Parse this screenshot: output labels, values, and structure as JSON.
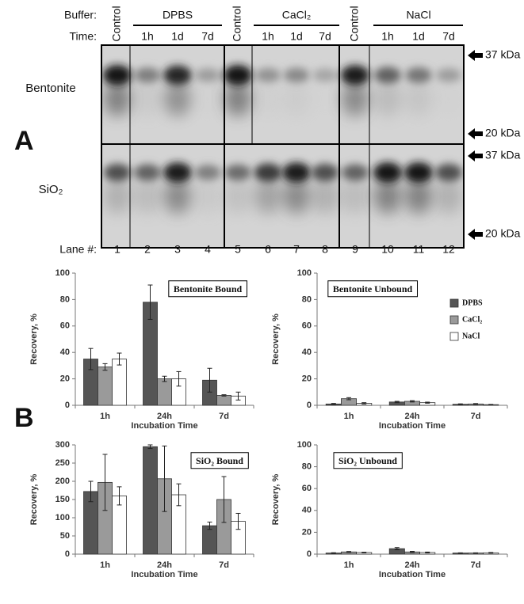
{
  "panel_a": {
    "label": "A",
    "buffer_label": "Buffer:",
    "time_label": "Time:",
    "lane_label": "Lane #:",
    "controls": [
      "Control",
      "Control",
      "Control"
    ],
    "groups": [
      {
        "name": "DPBS",
        "times": [
          "1h",
          "1d",
          "7d"
        ]
      },
      {
        "name": "CaCl₂",
        "times": [
          "1h",
          "1d",
          "7d"
        ]
      },
      {
        "name": "NaCl",
        "times": [
          "1h",
          "1d",
          "7d"
        ]
      }
    ],
    "lanes": [
      1,
      2,
      3,
      4,
      5,
      6,
      7,
      8,
      9,
      10,
      11,
      12
    ],
    "rows": [
      "Bentonite",
      "SiO₂"
    ],
    "markers": [
      "37 kDa",
      "20 kDa",
      "37 kDa",
      "20 kDa"
    ]
  },
  "panel_b": {
    "label": "B"
  },
  "chart_data": [
    {
      "type": "bar",
      "title": "Bentonite Bound",
      "x_label": "Incubation Time",
      "y_label": "Recovery, %",
      "categories": [
        "1h",
        "24h",
        "7d"
      ],
      "ylim": [
        0,
        100
      ],
      "yticks": [
        0,
        20,
        40,
        60,
        80,
        100
      ],
      "series": [
        {
          "color": "#555555",
          "values": [
            35,
            78,
            19
          ],
          "errors": [
            8,
            13,
            9
          ]
        },
        {
          "color": "#9a9a9a",
          "values": [
            29,
            20,
            7.5
          ],
          "errors": [
            2.5,
            2,
            0.5
          ]
        },
        {
          "color": "#ffffff",
          "values": [
            35,
            20,
            7
          ],
          "errors": [
            4.5,
            5.5,
            3
          ]
        }
      ]
    },
    {
      "type": "bar",
      "title": "Bentonite Unbound",
      "x_label": "Incubation Time",
      "y_label": "Recovery, %",
      "categories": [
        "1h",
        "24h",
        "7d"
      ],
      "ylim": [
        0,
        100
      ],
      "yticks": [
        0,
        20,
        40,
        60,
        80,
        100
      ],
      "legend": "upper right",
      "series": [
        {
          "name": "DPBS",
          "color": "#555555",
          "values": [
            1,
            2.5,
            0.8
          ],
          "errors": [
            0.4,
            0.5,
            0.3
          ]
        },
        {
          "name": "CaCl₂",
          "color": "#9a9a9a",
          "values": [
            5,
            3,
            1
          ],
          "errors": [
            0.8,
            0.5,
            0.3
          ]
        },
        {
          "name": "NaCl",
          "color": "#ffffff",
          "values": [
            1.5,
            2,
            0.5
          ],
          "errors": [
            0.5,
            0.4,
            0.2
          ]
        }
      ]
    },
    {
      "type": "bar",
      "title": "SiO₂ Bound",
      "x_label": "Incubation Time",
      "y_label": "Recovery, %",
      "categories": [
        "1h",
        "24h",
        "7d"
      ],
      "ylim": [
        0,
        300
      ],
      "yticks": [
        0,
        50,
        100,
        150,
        200,
        250,
        300
      ],
      "series": [
        {
          "color": "#555555",
          "values": [
            172,
            295,
            78
          ],
          "errors": [
            28,
            5,
            10
          ]
        },
        {
          "color": "#9a9a9a",
          "values": [
            197,
            207,
            150
          ],
          "errors": [
            77,
            90,
            63
          ]
        },
        {
          "color": "#ffffff",
          "values": [
            160,
            163,
            90
          ],
          "errors": [
            25,
            30,
            22
          ]
        }
      ]
    },
    {
      "type": "bar",
      "title": "SiO₂ Unbound",
      "x_label": "Incubation Time",
      "y_label": "Recovery, %",
      "categories": [
        "1h",
        "24h",
        "7d"
      ],
      "ylim": [
        0,
        100
      ],
      "yticks": [
        0,
        20,
        40,
        60,
        80,
        100
      ],
      "series": [
        {
          "color": "#555555",
          "values": [
            1,
            5,
            1
          ],
          "errors": [
            0.3,
            1,
            0.2
          ]
        },
        {
          "color": "#9a9a9a",
          "values": [
            2,
            2,
            1
          ],
          "errors": [
            0.4,
            0.5,
            0.2
          ]
        },
        {
          "color": "#ffffff",
          "values": [
            1.5,
            1.5,
            1.2
          ],
          "errors": [
            0.3,
            0.4,
            0.3
          ]
        }
      ]
    }
  ]
}
